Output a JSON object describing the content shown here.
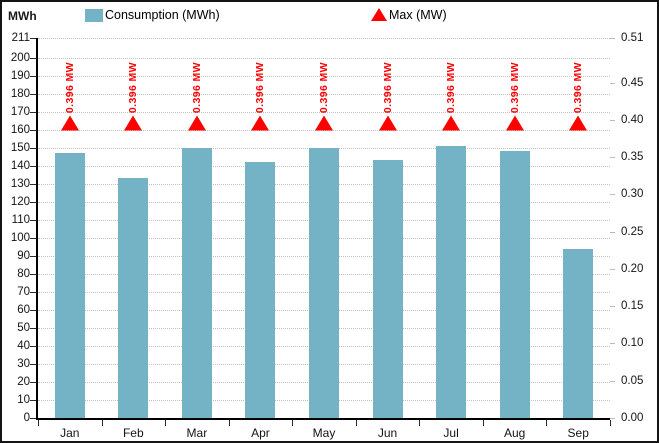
{
  "colors": {
    "bar": "#74b2c6",
    "max_marker": "#ff0000",
    "grid": "#c2c2c2",
    "axis": "#000000",
    "background": "#ffffff"
  },
  "header": {
    "axis_unit_label": "MWh",
    "legend": [
      {
        "label": "Consumption (MWh)",
        "marker": "bar-swatch"
      },
      {
        "label": "Max (MW)",
        "marker": "red-triangle"
      }
    ]
  },
  "chart_data": {
    "type": "bar",
    "title": "",
    "categories": [
      "Jan",
      "Feb",
      "Mar",
      "Apr",
      "May",
      "Jun",
      "Jul",
      "Aug",
      "Sep"
    ],
    "series": [
      {
        "name": "Consumption (MWh)",
        "type": "bar",
        "axis": "left",
        "color": "#74b2c6",
        "values": [
          147,
          133,
          150,
          142,
          150,
          143,
          151,
          148,
          94
        ]
      },
      {
        "name": "Max (MW)",
        "type": "triangle-point",
        "axis": "right",
        "color": "#ff0000",
        "values": [
          0.396,
          0.396,
          0.396,
          0.396,
          0.396,
          0.396,
          0.396,
          0.396,
          0.396
        ],
        "point_label": "0.396 MW"
      }
    ],
    "left_axis": {
      "unit": "MWh",
      "min": 0,
      "max": 211,
      "tick_labels": [
        "211",
        "200",
        "190",
        "180",
        "170",
        "160",
        "150",
        "140",
        "130",
        "120",
        "110",
        "100",
        "90",
        "80",
        "70",
        "60",
        "50",
        "40",
        "30",
        "20",
        "10",
        "0"
      ]
    },
    "right_axis": {
      "min": 0,
      "max": 0.51,
      "tick_labels": [
        "0.51",
        "0.45",
        "0.40",
        "0.35",
        "0.30",
        "0.25",
        "0.20",
        "0.15",
        "0.10",
        "0.05",
        "0.00"
      ]
    },
    "grid": "horizontal-dotted",
    "legend_position": "top"
  }
}
